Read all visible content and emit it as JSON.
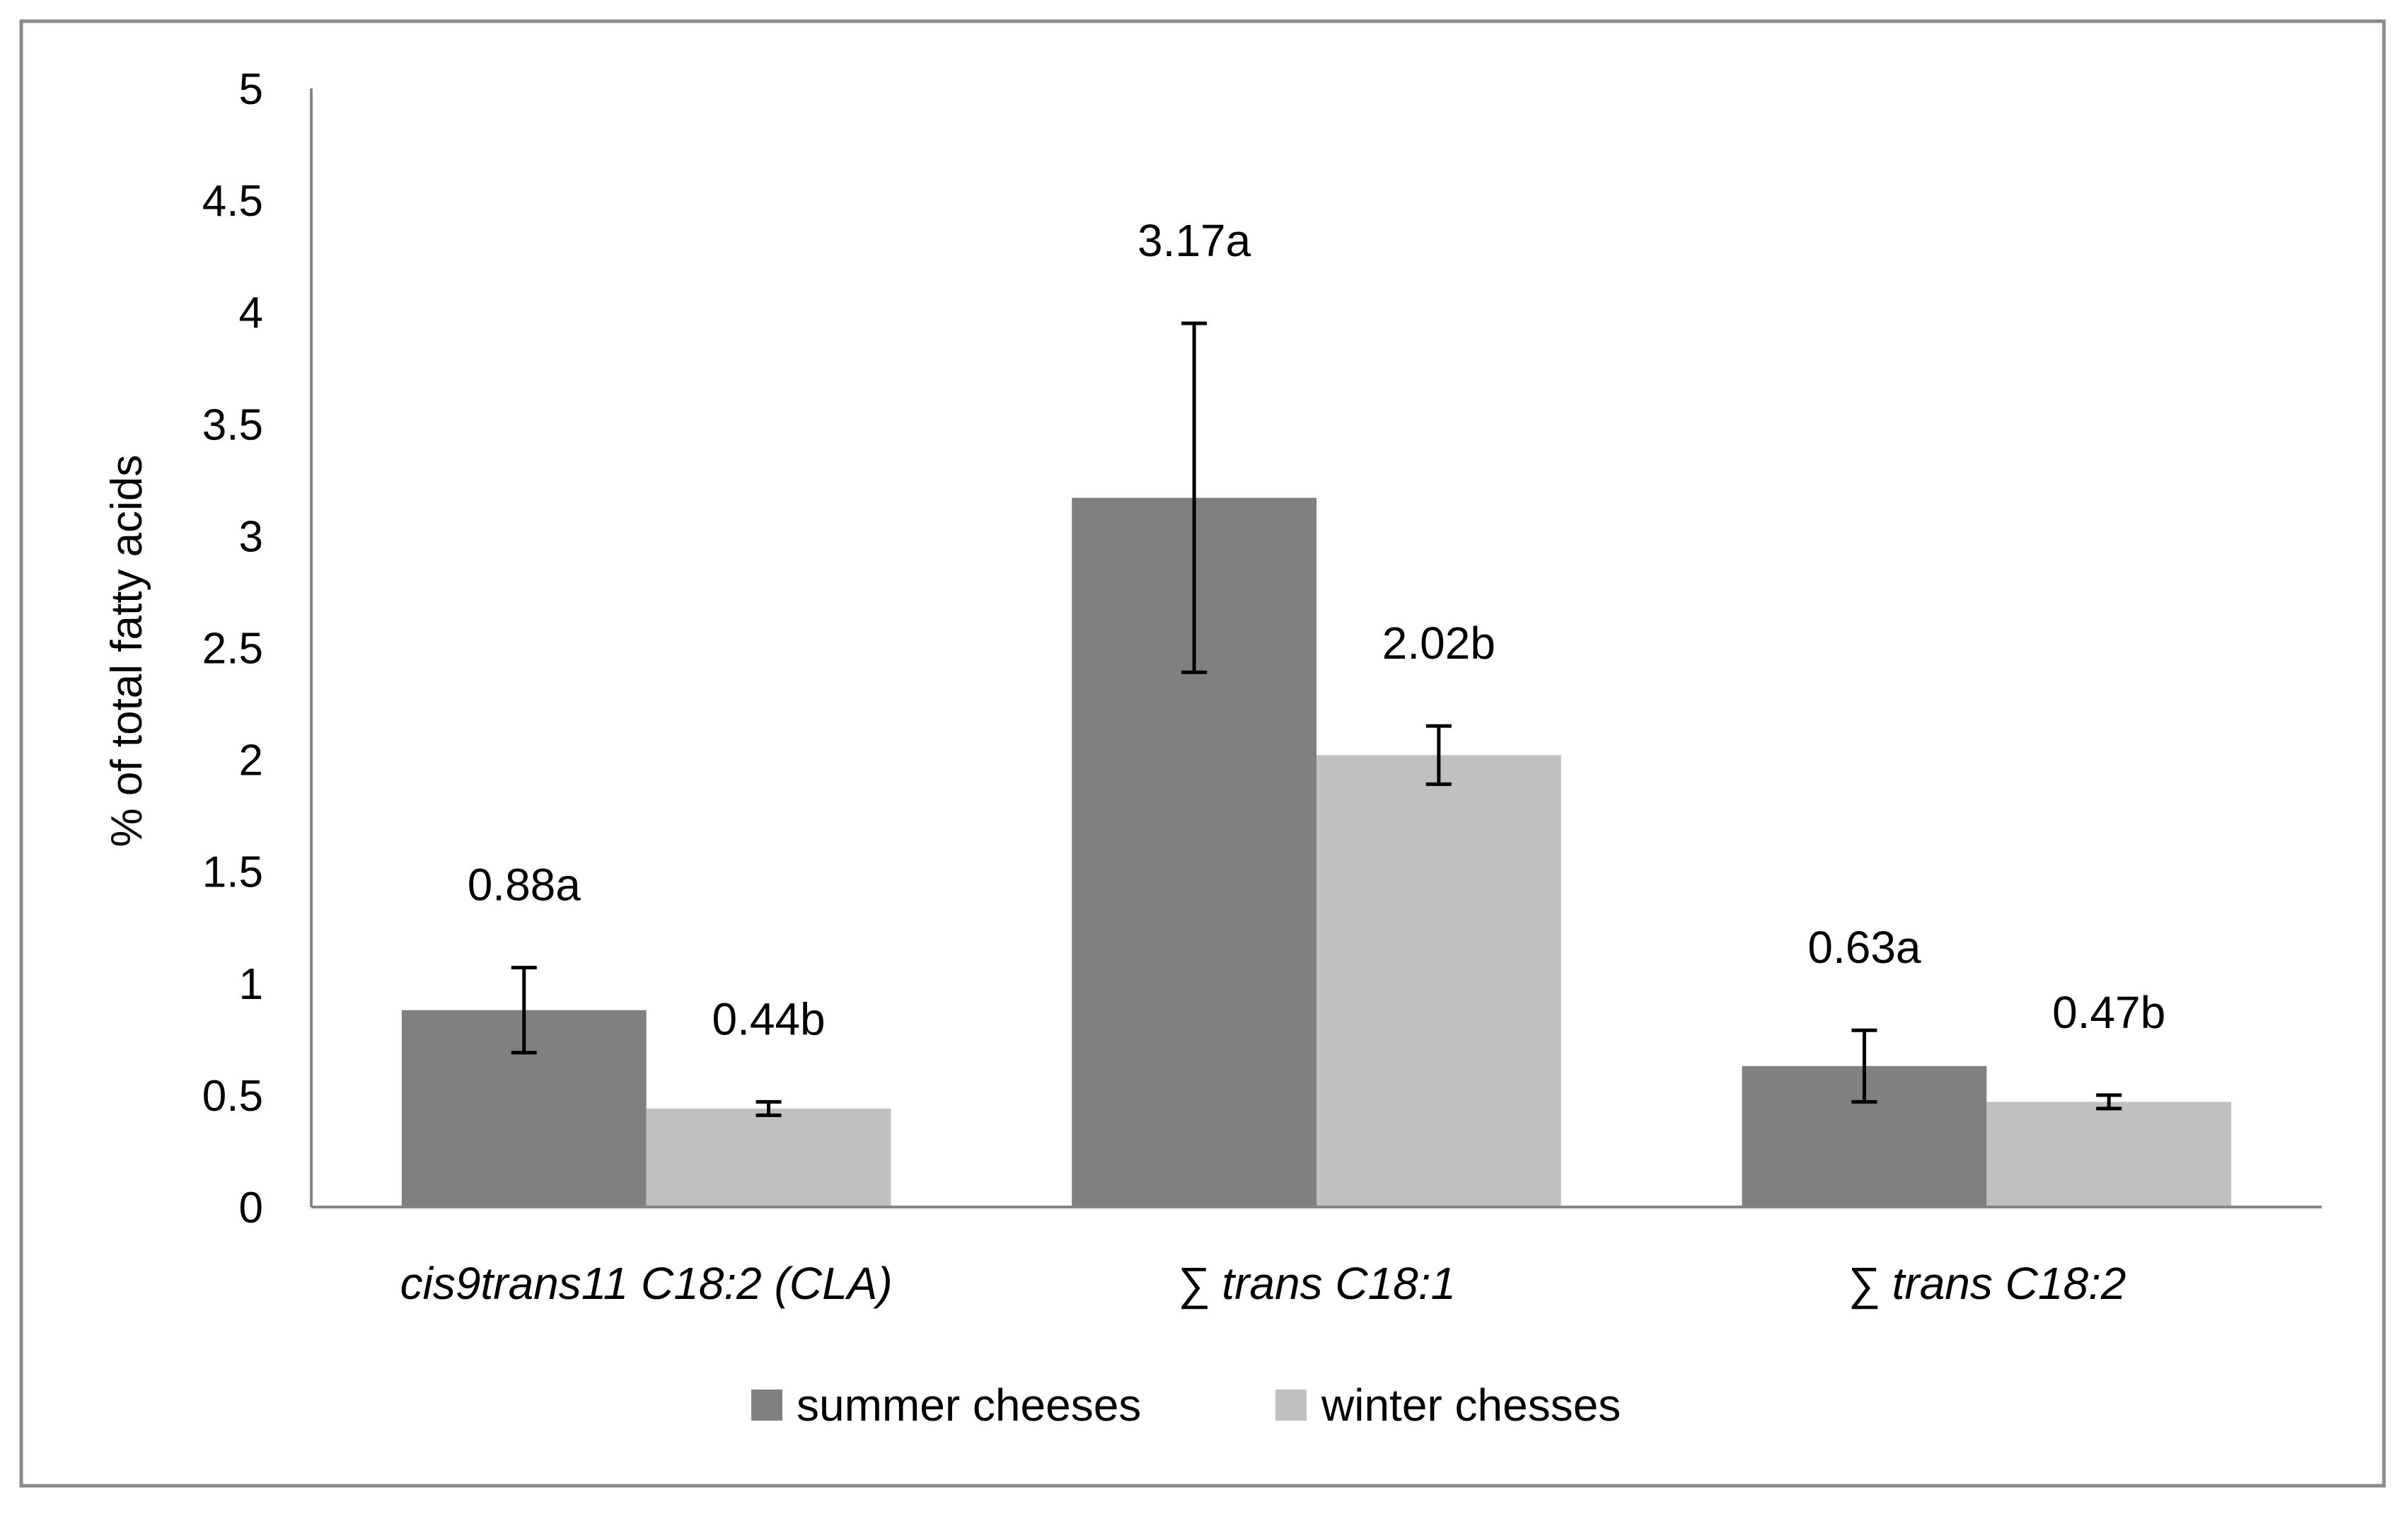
{
  "chart_data": {
    "type": "bar",
    "title": "",
    "xlabel": "",
    "ylabel": "% of total fatty acids",
    "ylim": [
      0,
      5
    ],
    "yticks": [
      "0",
      "0.5",
      "1",
      "1.5",
      "2",
      "2.5",
      "3",
      "3.5",
      "4",
      "4.5",
      "5"
    ],
    "grid": false,
    "legend_position": "bottom-center",
    "categories": [
      "cis9trans11 C18:2 (CLA)",
      "∑ trans C18:1",
      "∑ trans C18:2"
    ],
    "series": [
      {
        "name": "summer cheeses",
        "color": "#808080",
        "values": [
          0.88,
          3.17,
          0.63
        ],
        "error": [
          0.19,
          0.78,
          0.16
        ],
        "labels": [
          "0.88a",
          "3.17a",
          "0.63a"
        ]
      },
      {
        "name": "winter chesses",
        "color": "#c0c0c0",
        "values": [
          0.44,
          2.02,
          0.47
        ],
        "error": [
          0.03,
          0.13,
          0.03
        ],
        "labels": [
          "0.44b",
          "2.02b",
          "0.47b"
        ]
      }
    ]
  }
}
